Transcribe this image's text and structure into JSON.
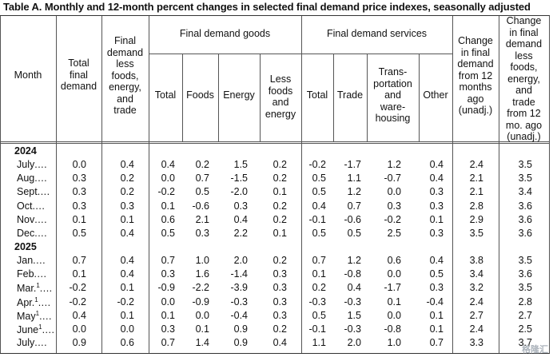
{
  "title": "Table A. Monthly and 12-month percent changes in selected final demand price indexes, seasonally adjusted",
  "headers": {
    "month": "Month",
    "total_final_demand": [
      "Total",
      "final",
      "demand"
    ],
    "fd_less": [
      "Final",
      "demand",
      "less",
      "foods,",
      "energy,",
      "and",
      "trade"
    ],
    "goods_group": "Final demand goods",
    "services_group": "Final demand services",
    "goods_total": "Total",
    "goods_foods": "Foods",
    "goods_energy": "Energy",
    "goods_less": [
      "Less",
      "foods",
      "and",
      "energy"
    ],
    "serv_total": "Total",
    "serv_trade": "Trade",
    "serv_transport": [
      "Trans-",
      "portation",
      "and",
      "ware-",
      "housing"
    ],
    "serv_other": "Other",
    "change12": [
      "Change",
      "in final",
      "demand",
      "from 12",
      "months",
      "ago",
      "(unadj.)"
    ],
    "change12_less": [
      "Change",
      "in final",
      "demand",
      "less",
      "foods,",
      "energy,",
      "and",
      "trade",
      "from 12",
      "mo. ago",
      "(unadj.)"
    ]
  },
  "year_2024": "2024",
  "year_2025": "2025",
  "rows_2024": [
    {
      "month": "July",
      "v": [
        "0.0",
        "0.4",
        "0.4",
        "0.2",
        "1.5",
        "0.2",
        "-0.2",
        "-1.7",
        "1.2",
        "0.4",
        "2.4",
        "3.5"
      ]
    },
    {
      "month": "Aug",
      "v": [
        "0.3",
        "0.2",
        "0.0",
        "0.7",
        "-1.5",
        "0.2",
        "0.5",
        "1.1",
        "-0.7",
        "0.4",
        "2.1",
        "3.5"
      ]
    },
    {
      "month": "Sept",
      "v": [
        "0.3",
        "0.2",
        "-0.2",
        "0.5",
        "-2.0",
        "0.1",
        "0.5",
        "1.2",
        "0.0",
        "0.3",
        "2.1",
        "3.4"
      ]
    },
    {
      "month": "Oct",
      "v": [
        "0.3",
        "0.3",
        "0.1",
        "-0.6",
        "0.3",
        "0.2",
        "0.4",
        "0.7",
        "0.3",
        "0.3",
        "2.8",
        "3.6"
      ]
    },
    {
      "month": "Nov",
      "v": [
        "0.1",
        "0.1",
        "0.6",
        "2.1",
        "0.4",
        "0.2",
        "-0.1",
        "-0.6",
        "-0.2",
        "0.1",
        "2.9",
        "3.6"
      ]
    },
    {
      "month": "Dec",
      "v": [
        "0.5",
        "0.4",
        "0.5",
        "0.3",
        "2.2",
        "0.1",
        "0.5",
        "0.5",
        "2.5",
        "0.3",
        "3.5",
        "3.6"
      ]
    }
  ],
  "rows_2025": [
    {
      "month": "Jan",
      "sup": "",
      "v": [
        "0.7",
        "0.4",
        "0.7",
        "1.0",
        "2.0",
        "0.2",
        "0.7",
        "1.2",
        "0.6",
        "0.4",
        "3.8",
        "3.5"
      ]
    },
    {
      "month": "Feb",
      "sup": "",
      "v": [
        "0.1",
        "0.4",
        "0.3",
        "1.6",
        "-1.4",
        "0.3",
        "0.1",
        "-0.8",
        "0.0",
        "0.5",
        "3.4",
        "3.6"
      ]
    },
    {
      "month": "Mar.",
      "sup": "1",
      "v": [
        "-0.2",
        "0.1",
        "-0.9",
        "-2.2",
        "-3.9",
        "0.3",
        "0.2",
        "0.4",
        "-1.7",
        "0.3",
        "3.2",
        "3.5"
      ]
    },
    {
      "month": "Apr.",
      "sup": "1",
      "v": [
        "-0.2",
        "-0.2",
        "0.0",
        "-0.9",
        "-0.3",
        "0.3",
        "-0.3",
        "-0.3",
        "0.1",
        "-0.4",
        "2.4",
        "2.8"
      ]
    },
    {
      "month": "May",
      "sup": "1",
      "v": [
        "0.4",
        "0.1",
        "0.1",
        "0.0",
        "-0.4",
        "0.3",
        "0.5",
        "1.5",
        "0.0",
        "0.1",
        "2.7",
        "2.7"
      ]
    },
    {
      "month": "June",
      "sup": "1",
      "v": [
        "0.0",
        "0.0",
        "0.3",
        "0.1",
        "0.9",
        "0.2",
        "-0.1",
        "-0.3",
        "-0.8",
        "0.1",
        "2.4",
        "2.5"
      ]
    },
    {
      "month": "July",
      "sup": "",
      "v": [
        "0.9",
        "0.6",
        "0.7",
        "1.4",
        "0.9",
        "0.4",
        "1.1",
        "2.0",
        "1.0",
        "0.7",
        "3.3",
        "3.7"
      ]
    }
  ],
  "watermark": "格隆汇"
}
